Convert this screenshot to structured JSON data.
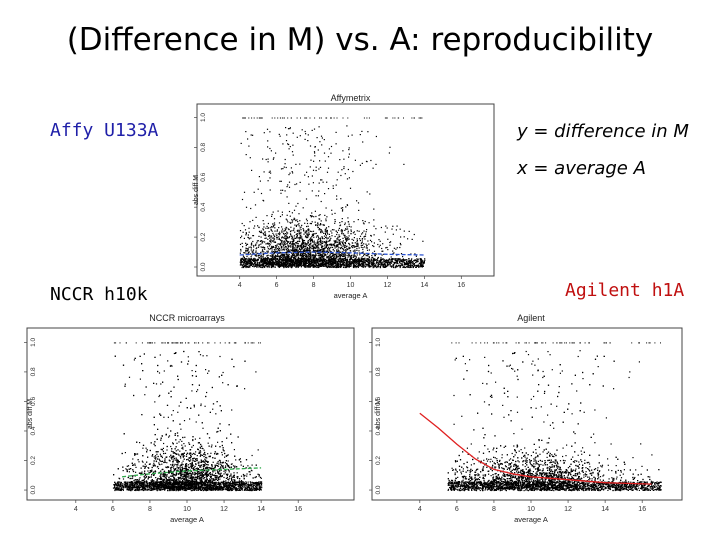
{
  "slide": {
    "title": "(Difference in M) vs. A: reproducibility",
    "labels": {
      "affy": "Affy U133A",
      "nccr": "NCCR h10k",
      "agilent": "Agilent h1A",
      "y_note": "y = difference in M",
      "x_note": "x = average A"
    }
  },
  "colors": {
    "affy_label": "#1f1fa8",
    "agilent_label": "#c01010",
    "affy_fit": "#2a52d0",
    "nccr_fit": "#2ea84a",
    "agilent_fit": "#e02020"
  },
  "chart_data": [
    {
      "type": "scatter",
      "title": "Affymetrix",
      "xlabel": "average A",
      "ylabel": "abs diff M",
      "xticks": [
        "4",
        "6",
        "8",
        "10",
        "12",
        "14",
        "16"
      ],
      "yticks": [
        "0.0",
        "0.2",
        "0.4",
        "0.6",
        "0.8",
        "1.0"
      ],
      "xlim": [
        2.5,
        17.5
      ],
      "ylim": [
        -0.02,
        1.05
      ],
      "cloud": {
        "x_range": [
          4,
          14
        ],
        "x_peak": 7.5,
        "y_median": 0.1
      },
      "fit_line": {
        "color": "#2a52d0",
        "x": [
          4,
          6,
          8,
          10,
          12,
          14
        ],
        "y": [
          0.08,
          0.095,
          0.1,
          0.095,
          0.085,
          0.08
        ]
      }
    },
    {
      "type": "scatter",
      "title": "NCCR microarrays",
      "xlabel": "average A",
      "ylabel": "abs diff M",
      "xticks": [
        "4",
        "6",
        "8",
        "10",
        "12",
        "14",
        "16"
      ],
      "yticks": [
        "0.0",
        "0.2",
        "0.4",
        "0.6",
        "0.8",
        "1.0"
      ],
      "xlim": [
        2.5,
        17.5
      ],
      "ylim": [
        -0.02,
        1.05
      ],
      "cloud": {
        "x_range": [
          6,
          14
        ],
        "x_peak": 10,
        "y_median": 0.1
      },
      "fit_line": {
        "color": "#2ea84a",
        "x": [
          6.5,
          8,
          10,
          12,
          14
        ],
        "y": [
          0.09,
          0.11,
          0.13,
          0.14,
          0.15
        ]
      }
    },
    {
      "type": "scatter",
      "title": "Agilent",
      "xlabel": "average A",
      "ylabel": "abs diff M",
      "xticks": [
        "4",
        "6",
        "8",
        "10",
        "12",
        "14",
        "16"
      ],
      "yticks": [
        "0.0",
        "0.2",
        "0.4",
        "0.6",
        "0.8",
        "1.0"
      ],
      "xlim": [
        2.5,
        17.5
      ],
      "ylim": [
        -0.02,
        1.05
      ],
      "cloud": {
        "x_range": [
          5.5,
          17
        ],
        "x_peak": 10,
        "y_median": 0.08
      },
      "fit_line": {
        "color": "#e02020",
        "x": [
          4,
          5,
          6,
          7,
          8,
          9,
          10,
          12,
          14,
          16.5
        ],
        "y": [
          0.52,
          0.42,
          0.31,
          0.21,
          0.14,
          0.11,
          0.09,
          0.07,
          0.05,
          0.04
        ]
      }
    }
  ]
}
